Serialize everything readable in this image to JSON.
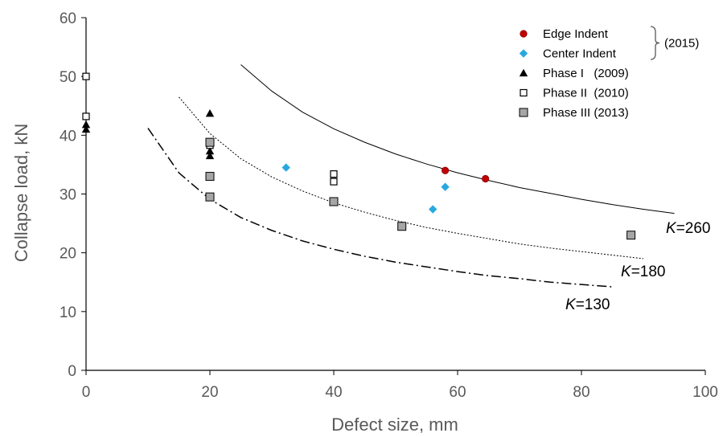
{
  "chart_data": {
    "type": "scatter",
    "xlabel": "Defect size, mm",
    "ylabel": "Collapse load, kN",
    "xlim": [
      0,
      100
    ],
    "ylim": [
      0,
      60
    ],
    "xticks": [
      "0",
      "20",
      "40",
      "60",
      "80",
      "100"
    ],
    "yticks": [
      "0",
      "10",
      "20",
      "30",
      "40",
      "50",
      "60"
    ],
    "grid": false,
    "legend_position": "top-right",
    "legend_group_label": "(2015)",
    "series": [
      {
        "name": "Edge Indent",
        "marker": "circle",
        "color": "#c00000",
        "points": [
          [
            58,
            34
          ],
          [
            64.5,
            32.6
          ]
        ]
      },
      {
        "name": "Center Indent",
        "marker": "diamond",
        "color": "#29a8e0",
        "points": [
          [
            32.3,
            34.5
          ],
          [
            56,
            27.4
          ],
          [
            58,
            31.2
          ]
        ]
      },
      {
        "name": "Phase I   (2009)",
        "marker": "triangle",
        "color": "#000000",
        "points": [
          [
            0,
            41
          ],
          [
            0,
            41.8
          ],
          [
            20,
            43.7
          ],
          [
            20,
            37.3
          ],
          [
            20,
            36.5
          ]
        ]
      },
      {
        "name": "Phase II  (2010)",
        "marker": "square-open",
        "color": "#000000",
        "points": [
          [
            0,
            50
          ],
          [
            0,
            43.2
          ],
          [
            20,
            38.3
          ],
          [
            40,
            33.4
          ],
          [
            40,
            32.1
          ]
        ]
      },
      {
        "name": "Phase III (2013)",
        "marker": "square-gray",
        "color": "#a6a6a6",
        "points": [
          [
            20,
            38.8
          ],
          [
            20,
            33
          ],
          [
            20,
            29.5
          ],
          [
            40,
            28.7
          ],
          [
            51,
            24.5
          ],
          [
            88,
            23
          ]
        ]
      }
    ],
    "curves": [
      {
        "label": "K=260",
        "label_prefix": "K",
        "label_suffix": "=260",
        "style": "solid",
        "x": [
          25,
          30,
          35,
          40,
          45,
          50,
          55,
          60,
          65,
          70,
          75,
          80,
          85,
          90,
          95
        ],
        "y": [
          52,
          47.5,
          43.9,
          41.1,
          38.8,
          36.8,
          35.1,
          33.6,
          32.3,
          31.1,
          30.1,
          29.1,
          28.2,
          27.4,
          26.7
        ]
      },
      {
        "label": "K=180",
        "label_prefix": "K",
        "label_suffix": "=180",
        "style": "dotted",
        "x": [
          15,
          20,
          25,
          30,
          35,
          40,
          45,
          50,
          55,
          60,
          65,
          70,
          75,
          80,
          85,
          90
        ],
        "y": [
          46.5,
          40.3,
          36,
          32.9,
          30.5,
          28.5,
          26.9,
          25.5,
          24.3,
          23.3,
          22.4,
          21.5,
          20.8,
          20.2,
          19.6,
          19
        ]
      },
      {
        "label": "K=130",
        "label_prefix": "K",
        "label_suffix": "=130",
        "style": "dash-dot",
        "x": [
          10,
          15,
          20,
          25,
          30,
          35,
          40,
          45,
          50,
          55,
          60,
          65,
          70,
          75,
          80,
          85
        ],
        "y": [
          41.2,
          33.6,
          29.1,
          26,
          23.8,
          22,
          20.6,
          19.4,
          18.4,
          17.6,
          16.8,
          16.1,
          15.6,
          15,
          14.6,
          14.2
        ]
      }
    ]
  }
}
